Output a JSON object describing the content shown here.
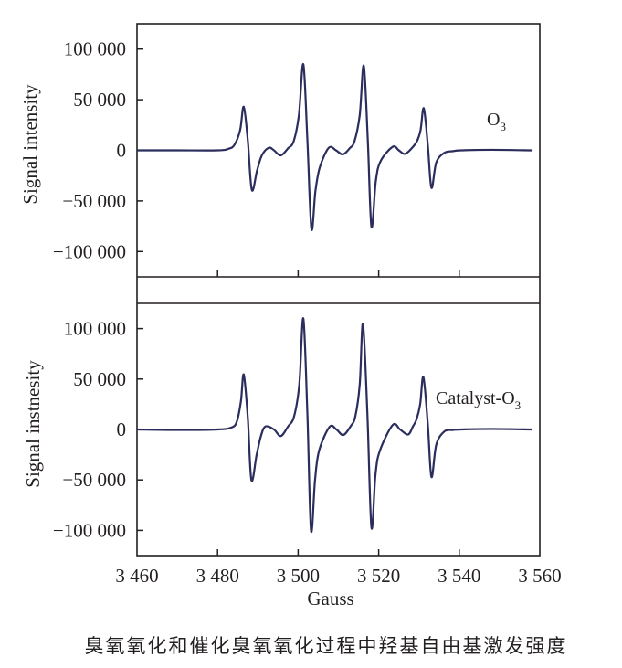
{
  "caption": "臭氧氧化和催化臭氧氧化过程中羟基自由基激发强度",
  "chart_data": [
    {
      "type": "line",
      "panel": "top",
      "xlabel": "",
      "ylabel": "Signal intensity",
      "series_label": {
        "main": "O",
        "sub": "3"
      },
      "xlim": [
        3460,
        3560
      ],
      "ylim": [
        -125000,
        125000
      ],
      "yticks": [
        100000,
        50000,
        0,
        -50000,
        -100000
      ],
      "ytick_labels": [
        "100 000",
        "50 000",
        "0",
        "−50 000",
        "−100 000"
      ],
      "xticks": [
        3480,
        3500,
        3520,
        3540
      ],
      "line_color": "#2b2d5c",
      "grid": false,
      "x": [
        3460,
        3470,
        3480,
        3482.7,
        3484.2,
        3485.6,
        3486.5,
        3487.5,
        3488.5,
        3489.8,
        3491,
        3492.7,
        3494,
        3495.7,
        3497.5,
        3498.9,
        3500.2,
        3501.3,
        3502.3,
        3503.3,
        3504.3,
        3505.4,
        3507.6,
        3509.4,
        3511.1,
        3512.8,
        3514,
        3515.3,
        3516.3,
        3517.3,
        3518.2,
        3519.3,
        3520.5,
        3523.5,
        3525,
        3526.5,
        3528.2,
        3529.5,
        3530.4,
        3531.2,
        3532.2,
        3533.1,
        3534.3,
        3536.3,
        3538.5,
        3540.4,
        3548,
        3558.2
      ],
      "y": [
        0,
        0,
        0,
        1500,
        5500,
        20000,
        43000,
        10000,
        -39000,
        -20000,
        -5000,
        2500,
        0,
        -5000,
        2000,
        9000,
        35000,
        85000,
        10000,
        -77500,
        -40000,
        -16500,
        2500,
        0,
        -4000,
        2000,
        9000,
        35000,
        83500,
        10000,
        -75500,
        -30000,
        -10500,
        3500,
        0,
        -3500,
        2000,
        9000,
        20000,
        41500,
        5000,
        -37000,
        -12000,
        -2500,
        -800,
        0,
        500,
        0
      ]
    },
    {
      "type": "line",
      "panel": "bottom",
      "xlabel": "Gauss",
      "ylabel": "Signal instnesity",
      "series_label": {
        "main": "Catalyst-O",
        "sub": "3"
      },
      "xlim": [
        3460,
        3560
      ],
      "ylim": [
        -125000,
        125000
      ],
      "yticks": [
        100000,
        50000,
        0,
        -50000,
        -100000
      ],
      "ytick_labels": [
        "100 000",
        "50 000",
        "0",
        "−50 000",
        "−100 000"
      ],
      "xticks": [
        3460,
        3480,
        3500,
        3520,
        3540,
        3560
      ],
      "xtick_labels": [
        "3 460",
        "3 480",
        "3 500",
        "3 520",
        "3 540",
        "3 560"
      ],
      "line_color": "#2b2d5c",
      "grid": false,
      "x": [
        3460,
        3470,
        3480,
        3483.5,
        3484.8,
        3485.8,
        3486.5,
        3487.5,
        3488.4,
        3489.7,
        3490.8,
        3491.9,
        3494,
        3495.7,
        3497.5,
        3499,
        3500.3,
        3501.3,
        3502.3,
        3503.2,
        3504.2,
        3505.2,
        3507.8,
        3509.5,
        3511.2,
        3513,
        3514.2,
        3515.3,
        3516.1,
        3517.2,
        3518.2,
        3519.2,
        3520.3,
        3523.5,
        3525.3,
        3527.3,
        3528.5,
        3529.4,
        3530.3,
        3531.1,
        3532.2,
        3533.1,
        3534.3,
        3536.3,
        3538.5,
        3540.4,
        3548,
        3558.2
      ],
      "y": [
        0,
        -500,
        0,
        2000,
        8000,
        28000,
        54500,
        12000,
        -50000,
        -25000,
        -6000,
        3000,
        0,
        -6500,
        3000,
        13000,
        45000,
        110000,
        15000,
        -100000,
        -50000,
        -21000,
        2500,
        0,
        -5500,
        3000,
        13000,
        45000,
        104500,
        15000,
        -97000,
        -45000,
        -21000,
        4500,
        0,
        -5000,
        3000,
        10000,
        25000,
        52000,
        5000,
        -47000,
        -15000,
        -2000,
        -500,
        0,
        500,
        0
      ]
    }
  ]
}
